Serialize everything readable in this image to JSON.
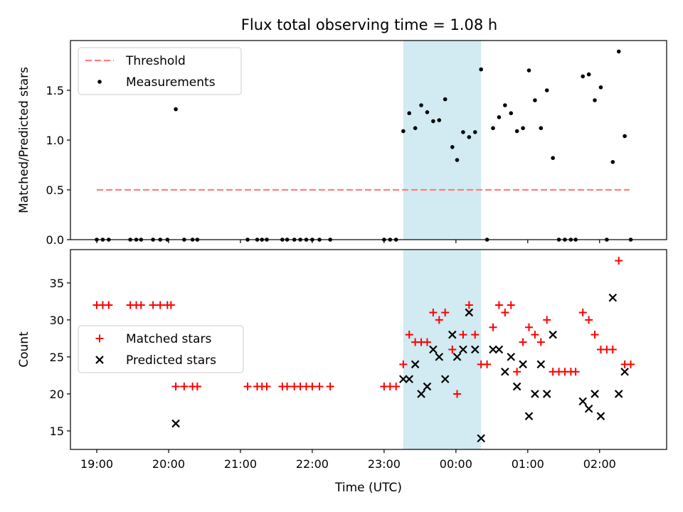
{
  "figure": {
    "title": "Flux total observing time = 1.08 h"
  },
  "chart_data": [
    {
      "type": "scatter",
      "panel": "top",
      "title": "Flux total observing time = 1.08 h",
      "xlabel": "",
      "ylabel": "Matched/Predicted stars",
      "x_unit": "time of night (UTC)",
      "xlim": [
        "18:38",
        "02:56"
      ],
      "ylim": [
        0,
        2.0
      ],
      "yticks": [
        "0.0",
        "0.5",
        "1.0",
        "1.5"
      ],
      "shaded_interval": {
        "start": "23:16",
        "end": "00:21",
        "color": "#add8e6"
      },
      "legend": {
        "position": "top-left",
        "entries": [
          "Threshold",
          "Measurements"
        ]
      },
      "series": [
        {
          "name": "Threshold",
          "style": "dashed-line",
          "color": "#ff7f7f",
          "points": [
            [
              "19:00",
              0.5
            ],
            [
              "02:25",
              0.5
            ]
          ]
        },
        {
          "name": "Measurements",
          "style": "dot",
          "color": "#000000",
          "points": [
            [
              "19:00",
              0.0
            ],
            [
              "19:05",
              0.0
            ],
            [
              "19:10",
              0.0
            ],
            [
              "19:28",
              0.0
            ],
            [
              "19:33",
              0.0
            ],
            [
              "19:37",
              0.0
            ],
            [
              "19:47",
              0.0
            ],
            [
              "19:53",
              0.0
            ],
            [
              "19:59",
              0.0
            ],
            [
              "20:06",
              1.31
            ],
            [
              "20:13",
              0.0
            ],
            [
              "20:20",
              0.0
            ],
            [
              "20:24",
              0.0
            ],
            [
              "21:06",
              0.0
            ],
            [
              "21:14",
              0.0
            ],
            [
              "21:18",
              0.0
            ],
            [
              "21:22",
              0.0
            ],
            [
              "21:35",
              0.0
            ],
            [
              "21:39",
              0.0
            ],
            [
              "21:45",
              0.0
            ],
            [
              "21:50",
              0.0
            ],
            [
              "21:55",
              0.0
            ],
            [
              "22:00",
              0.0
            ],
            [
              "22:06",
              0.0
            ],
            [
              "22:15",
              0.0
            ],
            [
              "23:00",
              0.0
            ],
            [
              "23:05",
              0.0
            ],
            [
              "23:10",
              0.0
            ],
            [
              "23:16",
              1.09
            ],
            [
              "23:21",
              1.27
            ],
            [
              "23:26",
              1.12
            ],
            [
              "23:31",
              1.35
            ],
            [
              "23:36",
              1.28
            ],
            [
              "23:41",
              1.19
            ],
            [
              "23:46",
              1.2
            ],
            [
              "23:51",
              1.41
            ],
            [
              "23:57",
              0.93
            ],
            [
              "00:01",
              0.8
            ],
            [
              "00:06",
              1.08
            ],
            [
              "00:11",
              1.03
            ],
            [
              "00:16",
              1.08
            ],
            [
              "00:21",
              1.71
            ],
            [
              "00:26",
              0.0
            ],
            [
              "00:31",
              1.12
            ],
            [
              "00:36",
              1.23
            ],
            [
              "00:41",
              1.35
            ],
            [
              "00:46",
              1.27
            ],
            [
              "00:51",
              1.09
            ],
            [
              "00:56",
              1.12
            ],
            [
              "01:01",
              1.7
            ],
            [
              "01:06",
              1.4
            ],
            [
              "01:11",
              1.12
            ],
            [
              "01:16",
              1.5
            ],
            [
              "01:21",
              0.82
            ],
            [
              "01:26",
              0.0
            ],
            [
              "01:31",
              0.0
            ],
            [
              "01:36",
              0.0
            ],
            [
              "01:40",
              0.0
            ],
            [
              "01:46",
              1.64
            ],
            [
              "01:51",
              1.66
            ],
            [
              "01:56",
              1.4
            ],
            [
              "02:01",
              1.53
            ],
            [
              "02:06",
              0.0
            ],
            [
              "02:11",
              0.78
            ],
            [
              "02:16",
              1.89
            ],
            [
              "02:21",
              1.04
            ],
            [
              "02:26",
              0.0
            ]
          ]
        }
      ]
    },
    {
      "type": "scatter",
      "panel": "bottom",
      "title": "",
      "xlabel": "Time (UTC)",
      "ylabel": "Count",
      "x_unit": "time of night (UTC)",
      "xlim": [
        "18:38",
        "02:56"
      ],
      "ylim": [
        12.5,
        39.5
      ],
      "yticks": [
        "15",
        "20",
        "25",
        "30",
        "35"
      ],
      "xticks": [
        "19:00",
        "20:00",
        "21:00",
        "22:00",
        "23:00",
        "00:00",
        "01:00",
        "02:00"
      ],
      "shaded_interval": {
        "start": "23:16",
        "end": "00:21",
        "color": "#add8e6"
      },
      "legend": {
        "position": "center-left",
        "entries": [
          "Matched stars",
          "Predicted stars"
        ]
      },
      "series": [
        {
          "name": "Matched stars",
          "style": "plus",
          "color": "#ff0000",
          "points": [
            [
              "19:00",
              32
            ],
            [
              "19:05",
              32
            ],
            [
              "19:10",
              32
            ],
            [
              "19:28",
              32
            ],
            [
              "19:33",
              32
            ],
            [
              "19:37",
              32
            ],
            [
              "19:47",
              32
            ],
            [
              "19:53",
              32
            ],
            [
              "19:59",
              32
            ],
            [
              "20:02",
              32
            ],
            [
              "20:06",
              21
            ],
            [
              "20:13",
              21
            ],
            [
              "20:20",
              21
            ],
            [
              "20:24",
              21
            ],
            [
              "21:06",
              21
            ],
            [
              "21:14",
              21
            ],
            [
              "21:18",
              21
            ],
            [
              "21:22",
              21
            ],
            [
              "21:35",
              21
            ],
            [
              "21:39",
              21
            ],
            [
              "21:45",
              21
            ],
            [
              "21:50",
              21
            ],
            [
              "21:55",
              21
            ],
            [
              "22:00",
              21
            ],
            [
              "22:06",
              21
            ],
            [
              "22:15",
              21
            ],
            [
              "23:00",
              21
            ],
            [
              "23:05",
              21
            ],
            [
              "23:10",
              21
            ],
            [
              "23:16",
              24
            ],
            [
              "23:21",
              28
            ],
            [
              "23:26",
              27
            ],
            [
              "23:31",
              27
            ],
            [
              "23:36",
              27
            ],
            [
              "23:41",
              31
            ],
            [
              "23:46",
              30
            ],
            [
              "23:51",
              31
            ],
            [
              "23:57",
              26
            ],
            [
              "00:01",
              20
            ],
            [
              "00:06",
              28
            ],
            [
              "00:11",
              32
            ],
            [
              "00:16",
              28
            ],
            [
              "00:21",
              24
            ],
            [
              "00:26",
              24
            ],
            [
              "00:31",
              29
            ],
            [
              "00:36",
              32
            ],
            [
              "00:41",
              31
            ],
            [
              "00:46",
              32
            ],
            [
              "00:51",
              23
            ],
            [
              "00:56",
              27
            ],
            [
              "01:01",
              29
            ],
            [
              "01:06",
              28
            ],
            [
              "01:11",
              27
            ],
            [
              "01:16",
              30
            ],
            [
              "01:21",
              23
            ],
            [
              "01:26",
              23
            ],
            [
              "01:31",
              23
            ],
            [
              "01:36",
              23
            ],
            [
              "01:40",
              23
            ],
            [
              "01:46",
              31
            ],
            [
              "01:51",
              30
            ],
            [
              "01:56",
              28
            ],
            [
              "02:01",
              26
            ],
            [
              "02:06",
              26
            ],
            [
              "02:11",
              26
            ],
            [
              "02:16",
              38
            ],
            [
              "02:21",
              24
            ],
            [
              "02:26",
              24
            ]
          ]
        },
        {
          "name": "Predicted stars",
          "style": "x",
          "color": "#000000",
          "points": [
            [
              "20:06",
              16
            ],
            [
              "23:16",
              22
            ],
            [
              "23:21",
              22
            ],
            [
              "23:26",
              24
            ],
            [
              "23:31",
              20
            ],
            [
              "23:36",
              21
            ],
            [
              "23:41",
              26
            ],
            [
              "23:46",
              25
            ],
            [
              "23:51",
              22
            ],
            [
              "23:57",
              28
            ],
            [
              "00:01",
              25
            ],
            [
              "00:06",
              26
            ],
            [
              "00:11",
              31
            ],
            [
              "00:16",
              26
            ],
            [
              "00:21",
              14
            ],
            [
              "00:31",
              26
            ],
            [
              "00:36",
              26
            ],
            [
              "00:41",
              23
            ],
            [
              "00:46",
              25
            ],
            [
              "00:51",
              21
            ],
            [
              "00:56",
              24
            ],
            [
              "01:01",
              17
            ],
            [
              "01:06",
              20
            ],
            [
              "01:11",
              24
            ],
            [
              "01:16",
              20
            ],
            [
              "01:21",
              28
            ],
            [
              "01:46",
              19
            ],
            [
              "01:51",
              18
            ],
            [
              "01:56",
              20
            ],
            [
              "02:01",
              17
            ],
            [
              "02:11",
              33
            ],
            [
              "02:16",
              20
            ],
            [
              "02:21",
              23
            ]
          ]
        }
      ]
    }
  ]
}
